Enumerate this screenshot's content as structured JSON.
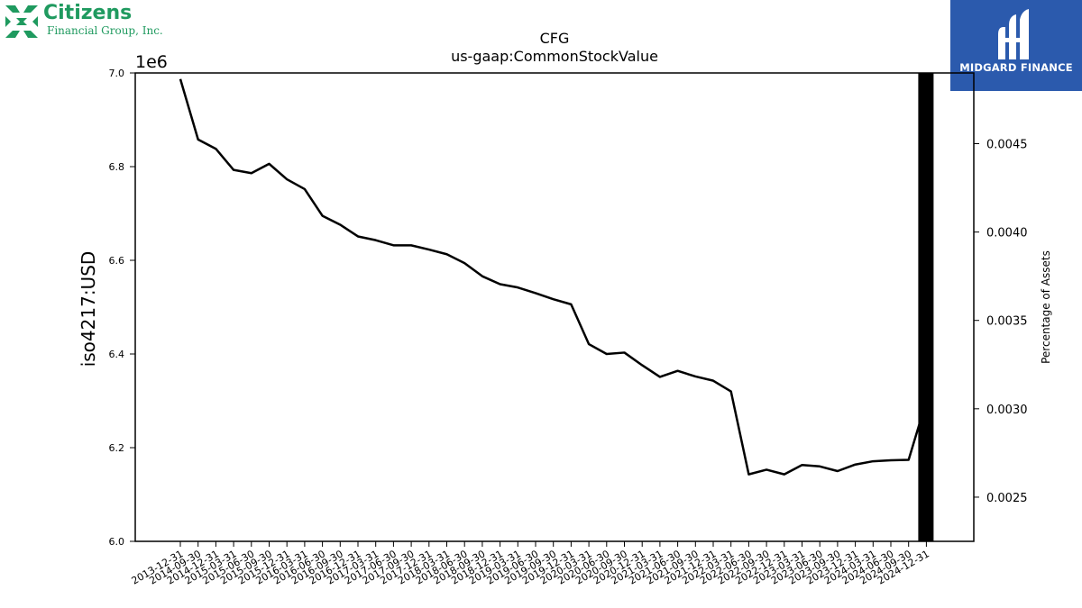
{
  "branding": {
    "left_logo_name": "Citizens",
    "left_logo_subtitle": "Financial Group, Inc.",
    "left_logo_color": "#1f9a5f",
    "right_logo_name": "MIDGARD FINANCE",
    "right_logo_color": "#2b5aad"
  },
  "chart_data": {
    "type": "line",
    "title": "CFG",
    "subtitle": "us-gaap:CommonStockValue",
    "ylabel": "iso4217:USD",
    "y_offset_label": "1e6",
    "y2label": "Percentage of Assets",
    "ylim": [
      6000000,
      7000000
    ],
    "y2lim": [
      0.00225,
      0.0049
    ],
    "yticks": [
      "6.0",
      "6.2",
      "6.4",
      "6.6",
      "6.8",
      "7.0"
    ],
    "y2ticks": [
      "0.0025",
      "0.0030",
      "0.0035",
      "0.0040",
      "0.0045"
    ],
    "categories": [
      "2013-12-31",
      "2014-09-30",
      "2014-12-31",
      "2015-03-31",
      "2015-06-30",
      "2015-09-30",
      "2015-12-31",
      "2016-03-31",
      "2016-06-30",
      "2016-09-30",
      "2016-12-31",
      "2017-03-31",
      "2017-06-30",
      "2017-09-30",
      "2017-12-31",
      "2018-03-31",
      "2018-06-30",
      "2018-09-30",
      "2018-12-31",
      "2019-03-31",
      "2019-06-30",
      "2019-09-30",
      "2019-12-31",
      "2020-03-31",
      "2020-06-30",
      "2020-09-30",
      "2020-12-31",
      "2021-03-31",
      "2021-06-30",
      "2021-09-30",
      "2021-12-31",
      "2022-03-31",
      "2022-06-30",
      "2022-09-30",
      "2022-12-31",
      "2023-03-31",
      "2023-06-30",
      "2023-09-30",
      "2023-12-31",
      "2024-03-31",
      "2024-06-30",
      "2024-09-30",
      "2024-12-31"
    ],
    "series": [
      {
        "color": "#000000",
        "values": [
          6987000,
          6858000,
          6838000,
          6793000,
          6786000,
          6806000,
          6773000,
          6752000,
          6695000,
          6676000,
          6651000,
          6643000,
          6632000,
          6632000,
          6623000,
          6613000,
          6594000,
          6566000,
          6549000,
          6542000,
          6530000,
          6517000,
          6506000,
          6421000,
          6400000,
          6403000,
          6376000,
          6351000,
          6364000,
          6352000,
          6343000,
          6320000,
          6143000,
          6153000,
          6143000,
          6163000,
          6160000,
          6150000,
          6164000,
          6171000,
          6173000,
          6174000,
          6300000
        ]
      }
    ],
    "bar_annotation": {
      "category": "2024-12-31",
      "color": "#000000"
    },
    "grid": false,
    "legend": "none"
  }
}
